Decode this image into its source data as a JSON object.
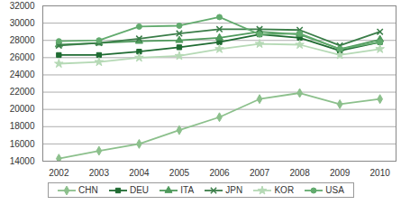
{
  "chart_data": {
    "type": "line",
    "x": [
      2002,
      2003,
      2004,
      2005,
      2006,
      2007,
      2008,
      2009,
      2010
    ],
    "xlim": [
      2001.6,
      2010.4
    ],
    "xticks": [
      2002,
      2003,
      2004,
      2005,
      2006,
      2007,
      2008,
      2009,
      2010
    ],
    "ylim": [
      14000,
      32000
    ],
    "yticks": [
      14000,
      16000,
      18000,
      20000,
      22000,
      24000,
      26000,
      28000,
      30000,
      32000
    ],
    "grid": true,
    "legend": "bottom",
    "series": [
      {
        "name": "CHN",
        "color": "#8cc08c",
        "marker": "diamond",
        "values": [
          14300,
          15200,
          16000,
          17600,
          19100,
          21200,
          21900,
          20600,
          21200
        ]
      },
      {
        "name": "DEU",
        "color": "#1f6b32",
        "marker": "square",
        "values": [
          26300,
          26300,
          26700,
          27200,
          27800,
          28700,
          28300,
          26800,
          27800
        ]
      },
      {
        "name": "ITA",
        "color": "#4f9a5c",
        "marker": "triangle",
        "values": [
          27500,
          27700,
          27900,
          28000,
          28300,
          29000,
          28700,
          27000,
          28100
        ]
      },
      {
        "name": "JPN",
        "color": "#3a7d48",
        "marker": "times",
        "values": [
          27400,
          27700,
          28200,
          28800,
          29300,
          29300,
          29200,
          27400,
          29000
        ]
      },
      {
        "name": "KOR",
        "color": "#b5d9b5",
        "marker": "star",
        "values": [
          25300,
          25500,
          26000,
          26200,
          27000,
          27600,
          27500,
          26300,
          27000
        ]
      },
      {
        "name": "USA",
        "color": "#62ab6e",
        "marker": "circle",
        "values": [
          27900,
          28000,
          29600,
          29700,
          30700,
          28700,
          28800,
          27000,
          27800
        ]
      }
    ]
  }
}
